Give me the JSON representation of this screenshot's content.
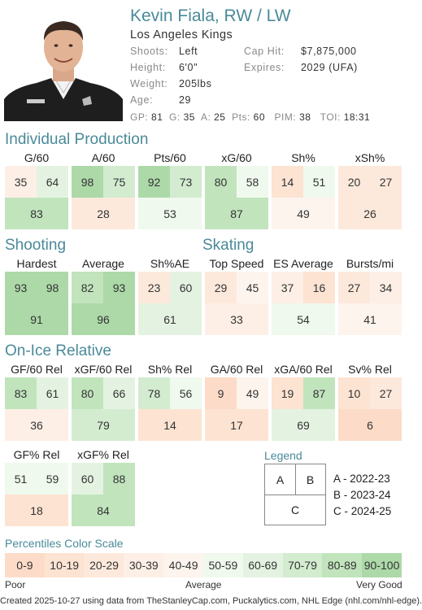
{
  "header": {
    "name": "Kevin Fiala, RW / LW",
    "team": "Los Angeles Kings",
    "info": [
      {
        "label": "Shoots:",
        "value": "Left",
        "label2": "Cap Hit:",
        "value2": "$7,875,000"
      },
      {
        "label": "Height:",
        "value": "6'0\"",
        "label2": "Expires:",
        "value2": "2029 (UFA)"
      },
      {
        "label": "Weight:",
        "value": "205lbs",
        "label2": "",
        "value2": ""
      },
      {
        "label": "Age:",
        "value": "29",
        "label2": "",
        "value2": ""
      }
    ],
    "statline": [
      {
        "k": "GP:",
        "v": "81"
      },
      {
        "k": "G:",
        "v": "35"
      },
      {
        "k": "A:",
        "v": "25"
      },
      {
        "k": "Pts:",
        "v": "60"
      },
      {
        "k": "PIM:",
        "v": "38"
      },
      {
        "k": "TOI:",
        "v": "18:31"
      }
    ]
  },
  "sections": {
    "individual": "Individual Production",
    "shooting": "Shooting",
    "skating": "Skating",
    "onice": "On-Ice Relative"
  },
  "metrics": [
    {
      "title": "G/60",
      "a": 35,
      "b": 64,
      "c": 83
    },
    {
      "title": "A/60",
      "a": 98,
      "b": 75,
      "c": 28
    },
    {
      "title": "Pts/60",
      "a": 92,
      "b": 73,
      "c": 53
    },
    {
      "title": "xG/60",
      "a": 80,
      "b": 58,
      "c": 87
    },
    {
      "title": "Sh%",
      "a": 14,
      "b": 51,
      "c": 49
    },
    {
      "title": "xSh%",
      "a": 20,
      "b": 27,
      "c": 26
    },
    {
      "title": "Hardest",
      "a": 93,
      "b": 98,
      "c": 91
    },
    {
      "title": "Average",
      "a": 82,
      "b": 93,
      "c": 96
    },
    {
      "title": "Sh%AE",
      "a": 23,
      "b": 60,
      "c": 61
    },
    {
      "title": "Top Speed",
      "a": 29,
      "b": 45,
      "c": 33
    },
    {
      "title": "ES Average",
      "a": 37,
      "b": 16,
      "c": 54
    },
    {
      "title": "Bursts/mi",
      "a": 27,
      "b": 34,
      "c": 41
    },
    {
      "title": "GF/60 Rel",
      "a": 83,
      "b": 61,
      "c": 36
    },
    {
      "title": "xGF/60 Rel",
      "a": 80,
      "b": 66,
      "c": 79
    },
    {
      "title": "Sh% Rel",
      "a": 78,
      "b": 56,
      "c": 14
    },
    {
      "title": "GA/60 Rel",
      "a": 9,
      "b": 49,
      "c": 17
    },
    {
      "title": "xGA/60 Rel",
      "a": 19,
      "b": 87,
      "c": 69
    },
    {
      "title": "Sv% Rel",
      "a": 10,
      "b": 27,
      "c": 6
    },
    {
      "title": "GF% Rel",
      "a": 51,
      "b": 59,
      "c": 18
    },
    {
      "title": "xGF% Rel",
      "a": 60,
      "b": 88,
      "c": 84
    }
  ],
  "legend": {
    "title": "Legend",
    "a": "A",
    "b": "B",
    "c": "C",
    "entries": [
      "A - 2022-23",
      "B - 2023-24",
      "C - 2024-25"
    ]
  },
  "scale": {
    "title": "Percentiles Color Scale",
    "bins": [
      "0-9",
      "10-19",
      "20-29",
      "30-39",
      "40-49",
      "50-59",
      "60-69",
      "70-79",
      "80-89",
      "90-100"
    ],
    "colors": [
      "#fcdcc8",
      "#fde3d2",
      "#fde9dc",
      "#fdefe6",
      "#fdf4ee",
      "#f0f9ee",
      "#e4f3e1",
      "#d3ecd0",
      "#c1e4bd",
      "#add9a9"
    ],
    "low": "Poor",
    "mid": "Average",
    "high": "Very Good"
  },
  "footer": "Created 2025-10-27 using data from TheStanleyCap.com, Puckalytics.com, NHL Edge (nhl.com/nhl-edge)."
}
